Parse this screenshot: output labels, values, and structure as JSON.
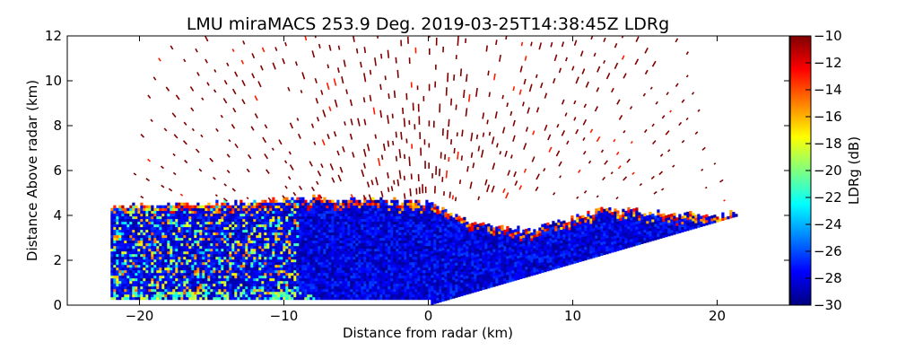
{
  "chart_data": {
    "type": "heatmap",
    "title": "LMU miraMACS 253.9 Deg. 2019-03-25T14:38:45Z  LDRg",
    "xlabel": "Distance from radar (km)",
    "ylabel": "Distance Above radar  (km)",
    "xlim": [
      -25,
      25
    ],
    "ylim": [
      0,
      12
    ],
    "xticks": [
      -20,
      -10,
      0,
      10,
      20
    ],
    "yticks": [
      0,
      2,
      4,
      6,
      8,
      10,
      12
    ],
    "xtick_labels": [
      "−20",
      "−10",
      "0",
      "10",
      "20"
    ],
    "ytick_labels": [
      "0",
      "2",
      "4",
      "6",
      "8",
      "10",
      "12"
    ],
    "colorbar": {
      "label": "LDRg (dB)",
      "range": [
        -30,
        -10
      ],
      "ticks": [
        -30,
        -28,
        -26,
        -24,
        -22,
        -20,
        -18,
        -16,
        -14,
        -12,
        -10
      ],
      "tick_labels": [
        "−30",
        "−28",
        "−26",
        "−24",
        "−22",
        "−20",
        "−18",
        "−16",
        "−14",
        "−12",
        "−10"
      ],
      "colormap": "jet"
    },
    "scan": {
      "azimuth_deg": 253.9,
      "max_range_km": 22,
      "cloud_layer_top_km": {
        "x": [
          -22,
          -14,
          -8,
          0,
          3,
          7,
          12,
          17,
          21.5
        ],
        "top": [
          4.4,
          4.5,
          4.7,
          4.5,
          3.5,
          3.3,
          4.2,
          4.0,
          4.0
        ]
      },
      "low_elevation_edge_km": {
        "x": [
          0,
          21.5
        ],
        "y": [
          0,
          4.0
        ]
      },
      "dominant_ldr_db": -28,
      "sparse_signal_ldr_db": -10
    }
  },
  "colors": {
    "low": "#00007f",
    "high": "#7f0000",
    "background": "#ffffff"
  }
}
